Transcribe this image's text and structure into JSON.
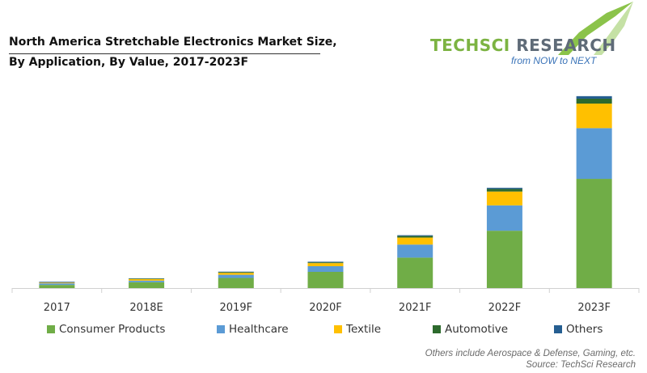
{
  "title": {
    "line1": "North America Stretchable Electronics Market Size,",
    "line2": "By Application, By Value, 2017-2023F"
  },
  "logo": {
    "tech": "TECHSCI",
    "research": "RESEARCH",
    "tagline": "from NOW to NEXT"
  },
  "footnote": {
    "others_note": "Others include Aerospace & Defense, Gaming, etc.",
    "source": "Source: TechSci Research"
  },
  "colors": {
    "consumer": "#70ad47",
    "healthcare": "#5b9bd5",
    "textile": "#ffc000",
    "automotive": "#2d6a2d",
    "others": "#255e91",
    "brand_green": "#7cb342",
    "brand_gray": "#5f6b78"
  },
  "chart_data": {
    "type": "bar",
    "stacked": true,
    "title": "North America Stretchable Electronics Market Size, By Application, By Value, 2017-2023F",
    "xlabel": "",
    "ylabel": "",
    "ylim": [
      0,
      100
    ],
    "grid": false,
    "legend_position": "bottom",
    "categories": [
      "2017",
      "2018E",
      "2019F",
      "2020F",
      "2021F",
      "2022F",
      "2023F"
    ],
    "series": [
      {
        "name": "Consumer Products",
        "color": "#70ad47",
        "values": [
          1.6,
          3.0,
          5.2,
          8.3,
          15.6,
          29.4,
          56.0
        ]
      },
      {
        "name": "Healthcare",
        "color": "#5b9bd5",
        "values": [
          0.8,
          0.8,
          1.6,
          2.9,
          6.7,
          13.0,
          26.0
        ]
      },
      {
        "name": "Textile",
        "color": "#ffc000",
        "values": [
          0.4,
          0.8,
          1.0,
          1.6,
          3.6,
          7.1,
          12.6
        ]
      },
      {
        "name": "Automotive",
        "color": "#2d6a2d",
        "values": [
          0.0,
          0.3,
          0.4,
          0.4,
          0.8,
          1.3,
          2.5
        ]
      },
      {
        "name": "Others",
        "color": "#255e91",
        "values": [
          0.4,
          0.1,
          0.2,
          0.3,
          0.4,
          0.6,
          1.3
        ]
      }
    ]
  }
}
